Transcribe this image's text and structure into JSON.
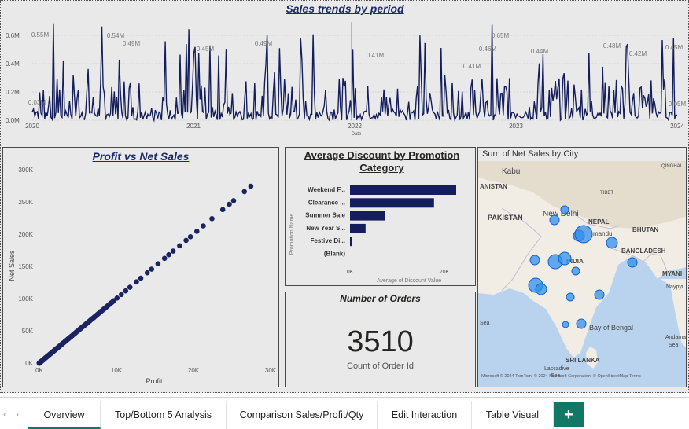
{
  "line_chart": {
    "title": "Sales trends by period",
    "xlabel": "Date",
    "y_ticks": [
      "0.0M",
      "0.2M",
      "0.4M",
      "0.6M"
    ],
    "x_ticks": [
      "2020",
      "2021",
      "2022",
      "2023",
      "2024"
    ],
    "peak_labels": [
      "0.55M",
      "0.54M",
      "0.49M",
      "0.45M",
      "0.49M",
      "0.41M",
      "0.41M",
      "0.46M",
      "0.65M",
      "0.44M",
      "0.48M",
      "0.42M",
      "0.45M"
    ],
    "low_labels": [
      "0.03M",
      "0.05M"
    ],
    "line_color": "#141e5c"
  },
  "scatter": {
    "title": "Profit vs Net Sales",
    "xlabel": "Profit",
    "ylabel": "Net Sales",
    "x_ticks": [
      "0K",
      "10K",
      "20K",
      "30K"
    ],
    "y_ticks": [
      "0K",
      "50K",
      "100K",
      "150K",
      "200K",
      "250K",
      "300K"
    ],
    "dot_color": "#1b2460"
  },
  "bar_chart": {
    "title": "Average Discount by Promotion Category",
    "ylabel": "Promotion Name",
    "xlabel": "Average of Discount Value",
    "x_ticks": [
      "0K",
      "20K"
    ],
    "categories": [
      "Weekend F...",
      "Clearance ...",
      "Summer Sale",
      "New Year S...",
      "Festive Di...",
      "(Blank)"
    ],
    "values": [
      22500,
      17800,
      7500,
      3300,
      500,
      0
    ],
    "xmax": 25000,
    "bar_color": "#141e5c"
  },
  "kpi": {
    "title": "Number of Orders",
    "value": "3510",
    "label": "Count of Order Id"
  },
  "map": {
    "title": "Sum of Net Sales by City",
    "labels": {
      "kabul": "Kabul",
      "afghanistan": "ANISTAN",
      "pakistan": "PAKISTAN",
      "new_delhi": "New Delhi",
      "nepal": "NEPAL",
      "kathmandu": "mandu",
      "tibet": "TIBET",
      "bhutan": "BHUTAN",
      "bangladesh": "BANGLADESH",
      "india": "INDIA",
      "myanmar": "MYANI",
      "naypyitaw": "Naypyi",
      "qinghai": "QINGHAI",
      "bay": "Bay of Bengal",
      "sea": "Sea",
      "andaman": "Andama",
      "andaman2": "Sea",
      "sri_lanka": "SRI LANKA",
      "laccadive1": "Laccadive",
      "laccadive2": "Sea"
    },
    "attribution": "Microsoft  © 2024 TomTom, © 2024 Microsoft Corporation, © OpenStreetMap  Terms",
    "bubble_color": "#2f8fee"
  },
  "tabs": [
    {
      "label": "Overview",
      "active": true
    },
    {
      "label": "Top/Bottom 5 Analysis",
      "active": false
    },
    {
      "label": "Comparison Sales/Profit/Qty",
      "active": false
    },
    {
      "label": "Edit Interaction",
      "active": false
    },
    {
      "label": "Table Visual",
      "active": false
    }
  ],
  "add_tab_label": "+",
  "nav": {
    "prev": "‹",
    "next": "›"
  }
}
